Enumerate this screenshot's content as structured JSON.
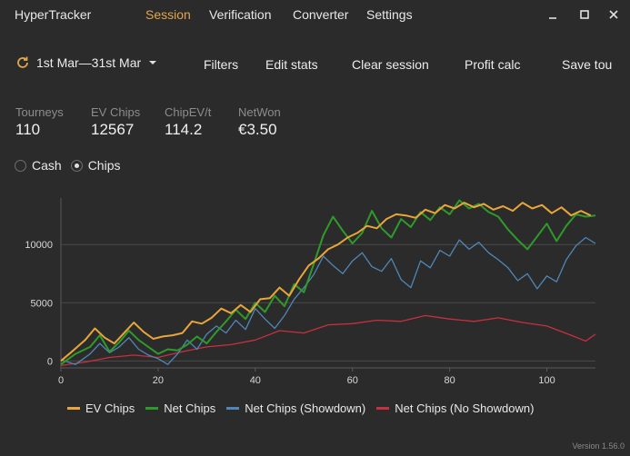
{
  "app": {
    "title": "HyperTracker"
  },
  "nav": {
    "tabs": [
      {
        "label": "Session",
        "active": true
      },
      {
        "label": "Verification",
        "active": false
      },
      {
        "label": "Converter",
        "active": false
      },
      {
        "label": "Settings",
        "active": false
      }
    ]
  },
  "window_controls": {
    "icons": [
      "minimize-icon",
      "maximize-icon",
      "close-icon"
    ]
  },
  "toolbar": {
    "date_range": "1st Mar—31st Mar",
    "filters": "Filters",
    "edit_stats": "Edit stats",
    "clear_session": "Clear session",
    "profit_calc": "Profit calc",
    "save": "Save tou"
  },
  "stats": [
    {
      "label": "Tourneys",
      "value": "110"
    },
    {
      "label": "EV Chips",
      "value": "12567"
    },
    {
      "label": "ChipEV/t",
      "value": "114.2"
    },
    {
      "label": "NetWon",
      "value": "€3.50"
    }
  ],
  "mode": {
    "options": [
      "Cash",
      "Chips"
    ],
    "selected": "Chips"
  },
  "colors": {
    "accent": "#e2a64a",
    "ev": "#e8a63a",
    "net": "#2f9a2a",
    "showdown": "#4f86b8",
    "no_showdown": "#c7303e"
  },
  "version": "Version 1.56.0",
  "chart_data": {
    "type": "line",
    "xlim": [
      0,
      110
    ],
    "ylim": [
      -600,
      14000
    ],
    "x_ticks": [
      0,
      20,
      40,
      60,
      80,
      100
    ],
    "y_ticks": [
      0,
      5000,
      10000
    ],
    "grid": true,
    "legend_position": "bottom",
    "series": [
      {
        "name": "EV Chips",
        "color": "#e8a63a",
        "points": [
          [
            0,
            0
          ],
          [
            2,
            700
          ],
          [
            5,
            1800
          ],
          [
            7,
            2800
          ],
          [
            9,
            2000
          ],
          [
            11,
            1500
          ],
          [
            13,
            2400
          ],
          [
            15,
            3300
          ],
          [
            17,
            2500
          ],
          [
            19,
            1900
          ],
          [
            21,
            2100
          ],
          [
            23,
            2200
          ],
          [
            25,
            2400
          ],
          [
            27,
            3400
          ],
          [
            29,
            3200
          ],
          [
            31,
            3700
          ],
          [
            33,
            4500
          ],
          [
            35,
            4100
          ],
          [
            37,
            4800
          ],
          [
            39,
            4200
          ],
          [
            41,
            5300
          ],
          [
            43,
            5400
          ],
          [
            45,
            6300
          ],
          [
            47,
            5600
          ],
          [
            49,
            7000
          ],
          [
            51,
            8200
          ],
          [
            53,
            8800
          ],
          [
            55,
            9600
          ],
          [
            57,
            10000
          ],
          [
            59,
            10600
          ],
          [
            61,
            11000
          ],
          [
            63,
            11600
          ],
          [
            65,
            11400
          ],
          [
            67,
            12200
          ],
          [
            69,
            12600
          ],
          [
            71,
            12500
          ],
          [
            73,
            12300
          ],
          [
            75,
            13000
          ],
          [
            77,
            12700
          ],
          [
            79,
            13400
          ],
          [
            81,
            13100
          ],
          [
            83,
            13600
          ],
          [
            85,
            13200
          ],
          [
            87,
            13500
          ],
          [
            89,
            13000
          ],
          [
            91,
            13300
          ],
          [
            93,
            12900
          ],
          [
            95,
            13600
          ],
          [
            97,
            13100
          ],
          [
            99,
            13400
          ],
          [
            101,
            12700
          ],
          [
            103,
            13200
          ],
          [
            105,
            12500
          ],
          [
            107,
            12900
          ],
          [
            109,
            12500
          ]
        ]
      },
      {
        "name": "Net Chips",
        "color": "#2f9a2a",
        "points": [
          [
            0,
            -300
          ],
          [
            3,
            600
          ],
          [
            6,
            1200
          ],
          [
            8,
            2200
          ],
          [
            10,
            800
          ],
          [
            12,
            1600
          ],
          [
            14,
            2600
          ],
          [
            16,
            1800
          ],
          [
            18,
            1200
          ],
          [
            20,
            600
          ],
          [
            22,
            1000
          ],
          [
            24,
            900
          ],
          [
            26,
            1400
          ],
          [
            28,
            2100
          ],
          [
            30,
            1500
          ],
          [
            32,
            2500
          ],
          [
            34,
            3400
          ],
          [
            36,
            4400
          ],
          [
            38,
            3600
          ],
          [
            40,
            5000
          ],
          [
            42,
            4200
          ],
          [
            44,
            5600
          ],
          [
            46,
            4700
          ],
          [
            48,
            6600
          ],
          [
            50,
            5900
          ],
          [
            52,
            8300
          ],
          [
            54,
            10800
          ],
          [
            56,
            12400
          ],
          [
            58,
            11200
          ],
          [
            60,
            10100
          ],
          [
            62,
            11000
          ],
          [
            64,
            12900
          ],
          [
            66,
            11400
          ],
          [
            68,
            10600
          ],
          [
            70,
            12200
          ],
          [
            72,
            11500
          ],
          [
            74,
            12800
          ],
          [
            76,
            12100
          ],
          [
            78,
            13200
          ],
          [
            80,
            12600
          ],
          [
            82,
            13800
          ],
          [
            84,
            13100
          ],
          [
            86,
            13500
          ],
          [
            88,
            12800
          ],
          [
            90,
            12400
          ],
          [
            92,
            11300
          ],
          [
            94,
            10400
          ],
          [
            96,
            9600
          ],
          [
            98,
            10700
          ],
          [
            100,
            11800
          ],
          [
            102,
            10300
          ],
          [
            104,
            11600
          ],
          [
            106,
            12600
          ],
          [
            108,
            12400
          ],
          [
            110,
            12500
          ]
        ]
      },
      {
        "name": "Net Chips (Showdown)",
        "color": "#4f86b8",
        "points": [
          [
            0,
            100
          ],
          [
            3,
            -300
          ],
          [
            6,
            600
          ],
          [
            8,
            1500
          ],
          [
            10,
            700
          ],
          [
            12,
            1200
          ],
          [
            14,
            2000
          ],
          [
            16,
            1000
          ],
          [
            18,
            500
          ],
          [
            20,
            200
          ],
          [
            22,
            -300
          ],
          [
            24,
            600
          ],
          [
            26,
            1800
          ],
          [
            28,
            1000
          ],
          [
            30,
            2300
          ],
          [
            32,
            3000
          ],
          [
            34,
            2400
          ],
          [
            36,
            3500
          ],
          [
            38,
            2700
          ],
          [
            40,
            4500
          ],
          [
            42,
            3600
          ],
          [
            44,
            2800
          ],
          [
            46,
            3900
          ],
          [
            48,
            5300
          ],
          [
            50,
            6300
          ],
          [
            52,
            7400
          ],
          [
            54,
            9000
          ],
          [
            56,
            8200
          ],
          [
            58,
            7500
          ],
          [
            60,
            8600
          ],
          [
            62,
            9300
          ],
          [
            64,
            8100
          ],
          [
            66,
            7700
          ],
          [
            68,
            8800
          ],
          [
            70,
            7000
          ],
          [
            72,
            6300
          ],
          [
            74,
            8600
          ],
          [
            76,
            8000
          ],
          [
            78,
            9500
          ],
          [
            80,
            9000
          ],
          [
            82,
            10400
          ],
          [
            84,
            9600
          ],
          [
            86,
            10200
          ],
          [
            88,
            9300
          ],
          [
            90,
            8700
          ],
          [
            92,
            8000
          ],
          [
            94,
            6900
          ],
          [
            96,
            7500
          ],
          [
            98,
            6200
          ],
          [
            100,
            7300
          ],
          [
            102,
            6800
          ],
          [
            104,
            8700
          ],
          [
            106,
            9900
          ],
          [
            108,
            10600
          ],
          [
            110,
            10100
          ]
        ]
      },
      {
        "name": "Net Chips (No Showdown)",
        "color": "#c7303e",
        "points": [
          [
            0,
            -400
          ],
          [
            5,
            -100
          ],
          [
            10,
            300
          ],
          [
            15,
            500
          ],
          [
            20,
            300
          ],
          [
            25,
            800
          ],
          [
            30,
            1200
          ],
          [
            35,
            1400
          ],
          [
            40,
            1800
          ],
          [
            45,
            2600
          ],
          [
            50,
            2400
          ],
          [
            55,
            3100
          ],
          [
            60,
            3200
          ],
          [
            65,
            3500
          ],
          [
            70,
            3400
          ],
          [
            75,
            3900
          ],
          [
            80,
            3600
          ],
          [
            85,
            3400
          ],
          [
            90,
            3700
          ],
          [
            95,
            3300
          ],
          [
            100,
            3000
          ],
          [
            105,
            2200
          ],
          [
            108,
            1700
          ],
          [
            110,
            2300
          ]
        ]
      }
    ]
  }
}
